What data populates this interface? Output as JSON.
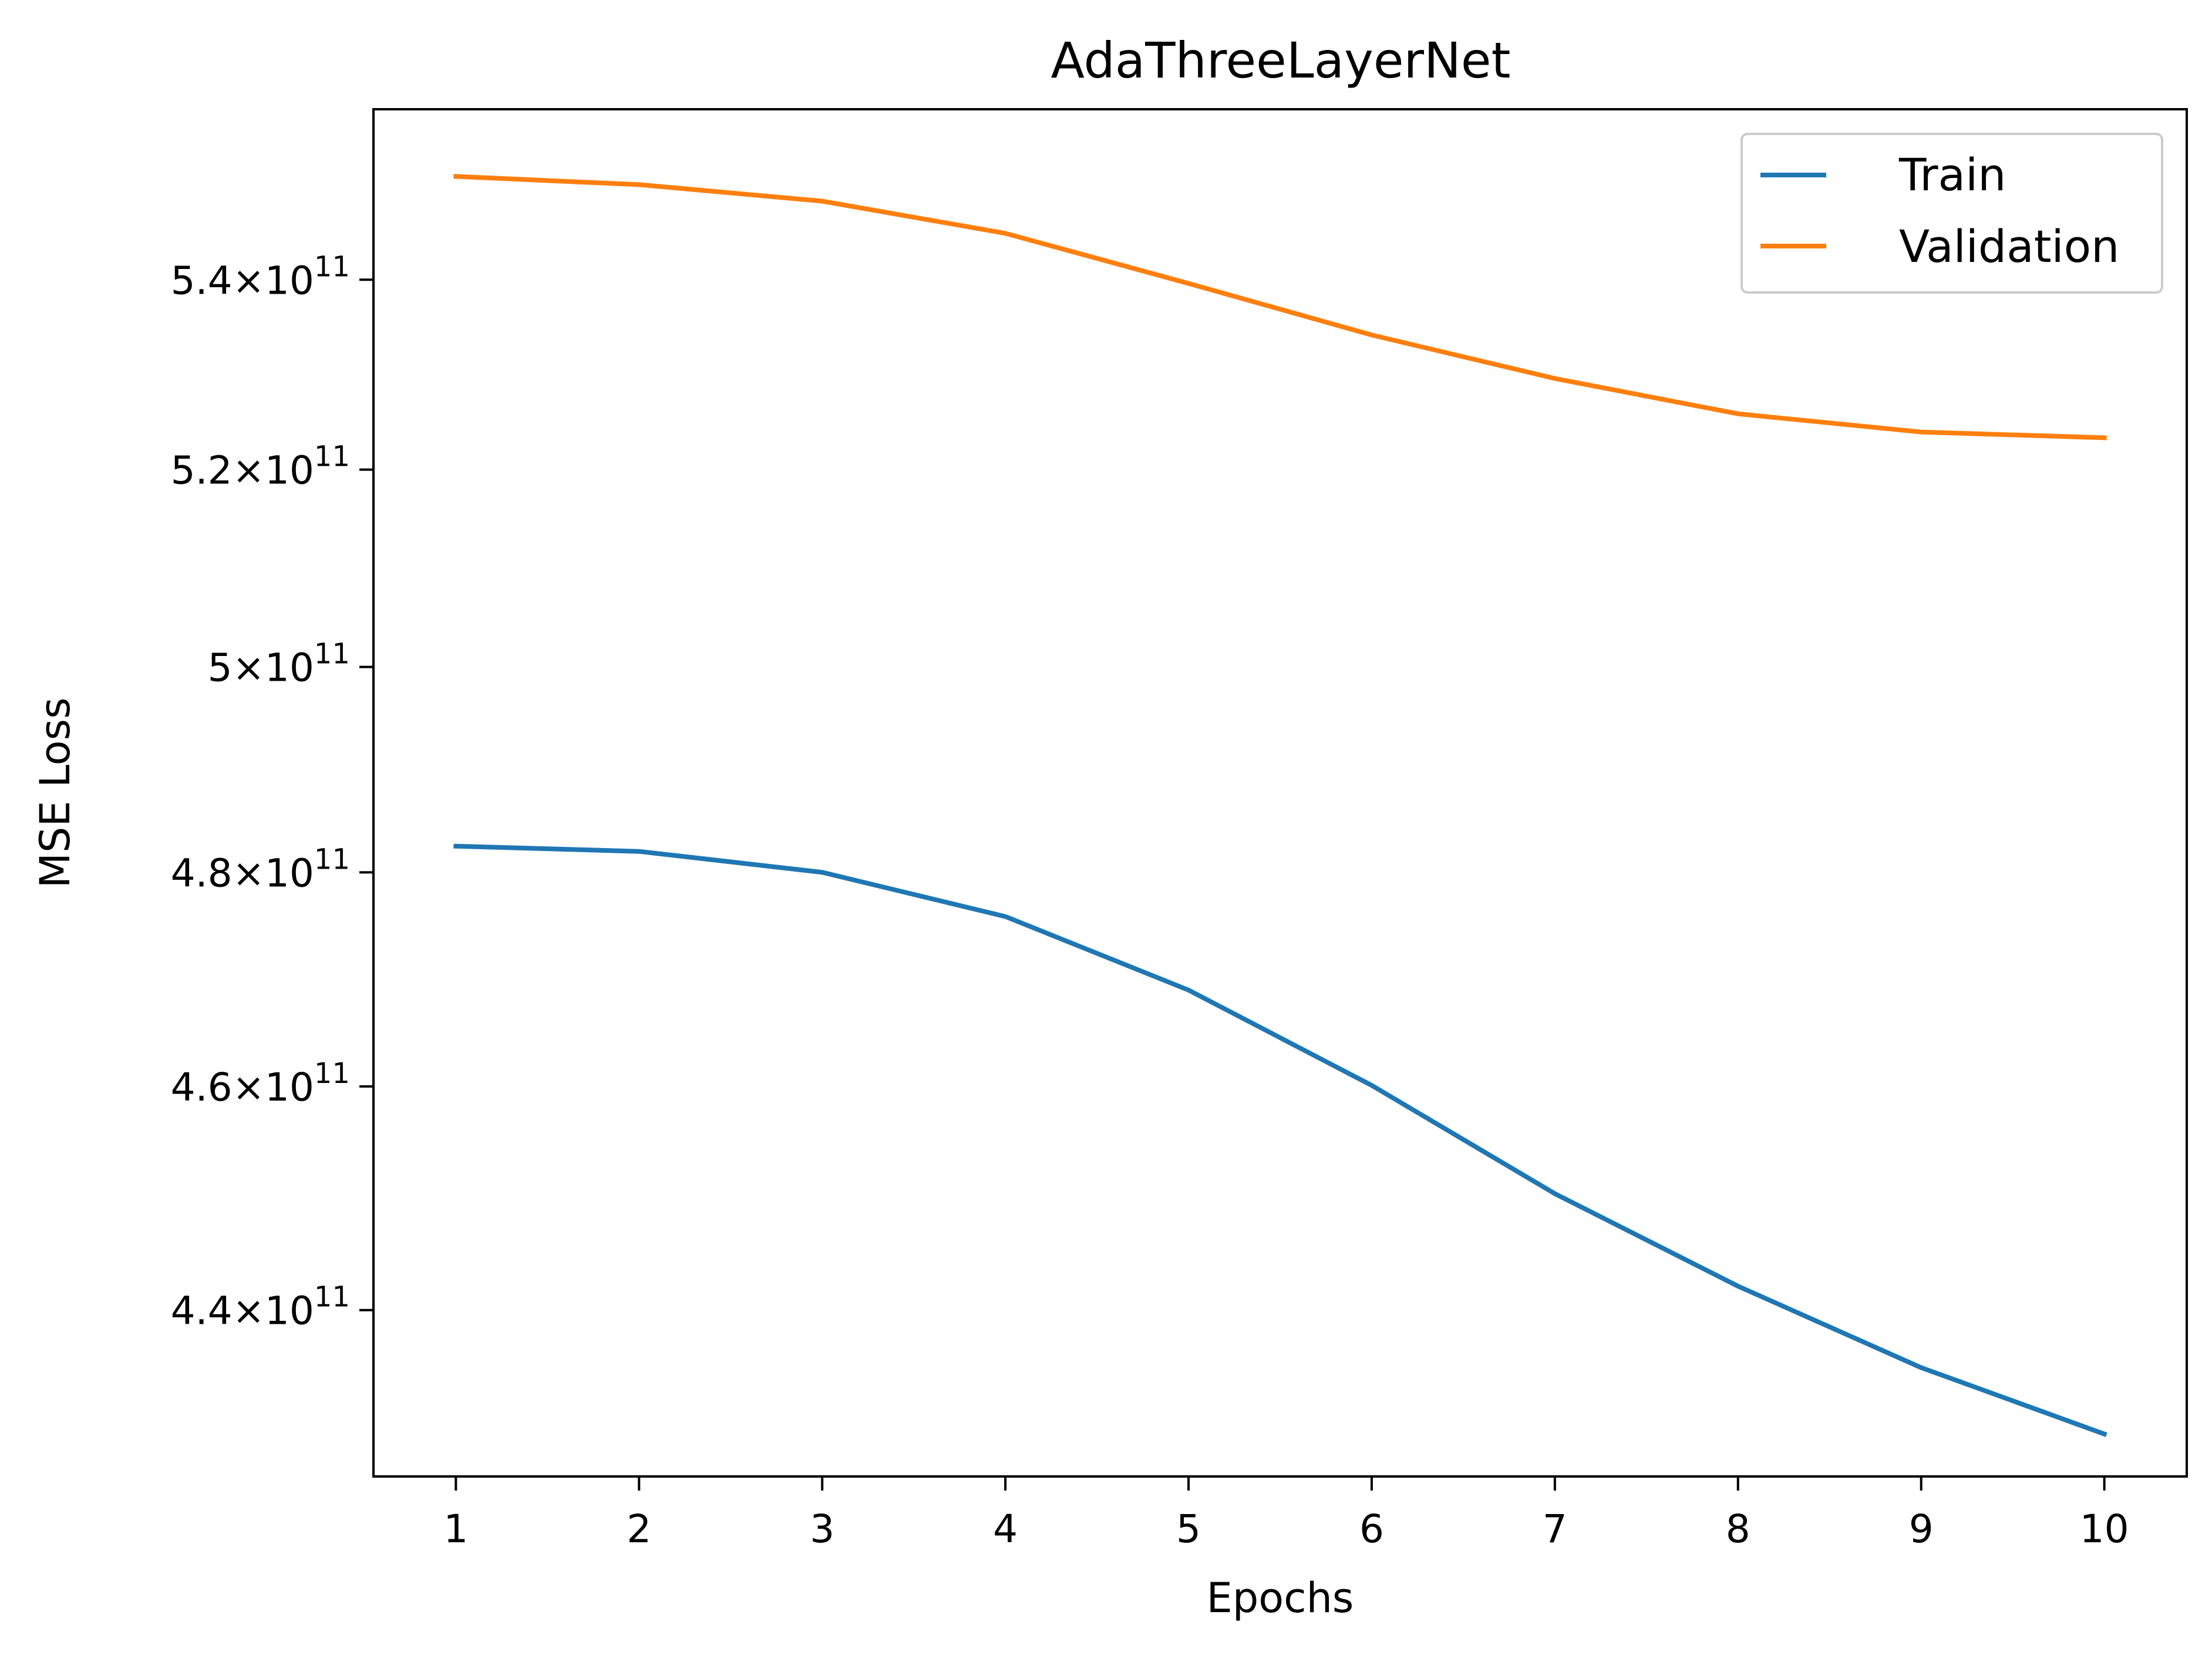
{
  "chart_data": {
    "type": "line",
    "title": "AdaThreeLayerNet",
    "xlabel": "Epochs",
    "ylabel": "MSE Loss",
    "yscale": "log",
    "x": [
      1,
      2,
      3,
      4,
      5,
      6,
      7,
      8,
      9,
      10
    ],
    "xticks": [
      1,
      2,
      3,
      4,
      5,
      6,
      7,
      8,
      9,
      10
    ],
    "xlim": [
      0.55,
      10.45
    ],
    "ylim": [
      425690000000.0,
      558610000000.0
    ],
    "yticks": [
      {
        "value": 440000000000.0,
        "mantissa": "4.4",
        "exponent": "11"
      },
      {
        "value": 460000000000.0,
        "mantissa": "4.6",
        "exponent": "11"
      },
      {
        "value": 480000000000.0,
        "mantissa": "4.8",
        "exponent": "11"
      },
      {
        "value": 500000000000.0,
        "mantissa": "5",
        "exponent": "11"
      },
      {
        "value": 520000000000.0,
        "mantissa": "5.2",
        "exponent": "11"
      },
      {
        "value": 540000000000.0,
        "mantissa": "5.4",
        "exponent": "11"
      }
    ],
    "grid": false,
    "legend_position": "top-right",
    "series": [
      {
        "name": "Train",
        "color": "#1f77b4",
        "values": [
          482500000000.0,
          482000000000.0,
          480000000000.0,
          475800000000.0,
          468900000000.0,
          460100000000.0,
          450300000000.0,
          442100000000.0,
          435000000000.0,
          429300000000.0
        ]
      },
      {
        "name": "Validation",
        "color": "#ff7f0e",
        "values": [
          551200000000.0,
          550300000000.0,
          548500000000.0,
          545000000000.0,
          539600000000.0,
          534100000000.0,
          529500000000.0,
          525800000000.0,
          523900000000.0,
          523300000000.0
        ]
      }
    ]
  }
}
